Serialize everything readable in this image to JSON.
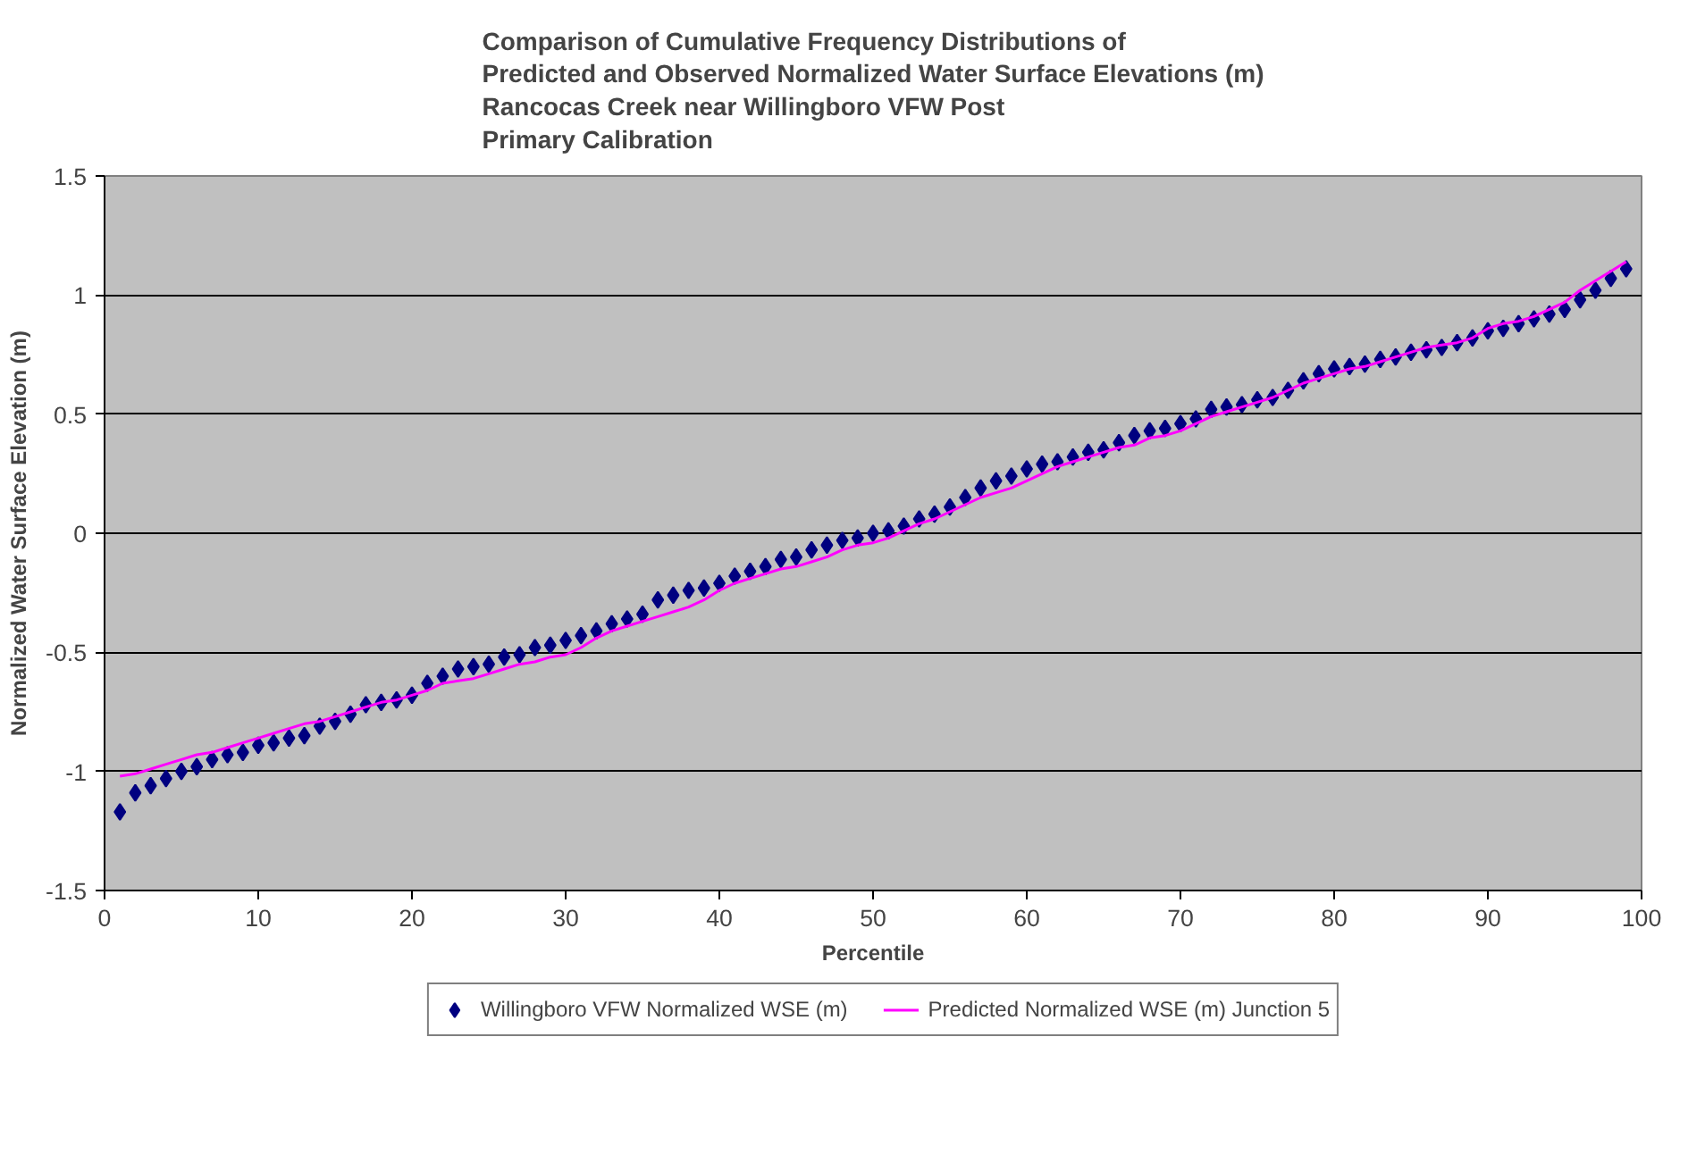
{
  "chart_data": {
    "type": "line",
    "title": "Comparison of Cumulative Frequency Distributions of\nPredicted and Observed Normalized Water Surface Elevations (m)\nRancocas Creek near Willingboro VFW Post\nPrimary Calibration",
    "xlabel": "Percentile",
    "ylabel": "Normalized Water Surface Elevation (m)",
    "x": [
      1,
      2,
      3,
      4,
      5,
      6,
      7,
      8,
      9,
      10,
      11,
      12,
      13,
      14,
      15,
      16,
      17,
      18,
      19,
      20,
      21,
      22,
      23,
      24,
      25,
      26,
      27,
      28,
      29,
      30,
      31,
      32,
      33,
      34,
      35,
      36,
      37,
      38,
      39,
      40,
      41,
      42,
      43,
      44,
      45,
      46,
      47,
      48,
      49,
      50,
      51,
      52,
      53,
      54,
      55,
      56,
      57,
      58,
      59,
      60,
      61,
      62,
      63,
      64,
      65,
      66,
      67,
      68,
      69,
      70,
      71,
      72,
      73,
      74,
      75,
      76,
      77,
      78,
      79,
      80,
      81,
      82,
      83,
      84,
      85,
      86,
      87,
      88,
      89,
      90,
      91,
      92,
      93,
      94,
      95,
      96,
      97,
      98,
      99
    ],
    "series": [
      {
        "name": "Willingboro VFW Normalized WSE (m)",
        "type": "scatter",
        "marker": "diamond",
        "color": "#000080",
        "values": [
          -1.17,
          -1.09,
          -1.06,
          -1.03,
          -1.0,
          -0.98,
          -0.95,
          -0.93,
          -0.92,
          -0.89,
          -0.88,
          -0.86,
          -0.85,
          -0.81,
          -0.79,
          -0.76,
          -0.72,
          -0.71,
          -0.7,
          -0.68,
          -0.63,
          -0.6,
          -0.57,
          -0.56,
          -0.55,
          -0.52,
          -0.51,
          -0.48,
          -0.47,
          -0.45,
          -0.43,
          -0.41,
          -0.38,
          -0.36,
          -0.34,
          -0.28,
          -0.26,
          -0.24,
          -0.23,
          -0.21,
          -0.18,
          -0.16,
          -0.14,
          -0.11,
          -0.1,
          -0.07,
          -0.05,
          -0.03,
          -0.02,
          0.0,
          0.01,
          0.03,
          0.06,
          0.08,
          0.11,
          0.15,
          0.19,
          0.22,
          0.24,
          0.27,
          0.29,
          0.3,
          0.32,
          0.34,
          0.35,
          0.38,
          0.41,
          0.43,
          0.44,
          0.46,
          0.48,
          0.52,
          0.53,
          0.54,
          0.56,
          0.57,
          0.6,
          0.64,
          0.67,
          0.69,
          0.7,
          0.71,
          0.73,
          0.74,
          0.76,
          0.77,
          0.78,
          0.8,
          0.82,
          0.85,
          0.86,
          0.88,
          0.9,
          0.92,
          0.94,
          0.98,
          1.02,
          1.07,
          1.11
        ]
      },
      {
        "name": "Predicted Normalized WSE (m) Junction 5",
        "marker": "none",
        "line_style": "solid",
        "color": "#ff00ff",
        "values": [
          -1.02,
          -1.01,
          -0.99,
          -0.97,
          -0.95,
          -0.93,
          -0.92,
          -0.9,
          -0.88,
          -0.86,
          -0.84,
          -0.82,
          -0.8,
          -0.79,
          -0.77,
          -0.75,
          -0.73,
          -0.71,
          -0.7,
          -0.68,
          -0.66,
          -0.63,
          -0.62,
          -0.61,
          -0.59,
          -0.57,
          -0.55,
          -0.54,
          -0.52,
          -0.51,
          -0.48,
          -0.44,
          -0.41,
          -0.39,
          -0.37,
          -0.35,
          -0.33,
          -0.31,
          -0.28,
          -0.24,
          -0.21,
          -0.19,
          -0.17,
          -0.15,
          -0.14,
          -0.12,
          -0.1,
          -0.07,
          -0.05,
          -0.04,
          -0.02,
          0.01,
          0.04,
          0.06,
          0.09,
          0.12,
          0.15,
          0.17,
          0.19,
          0.22,
          0.25,
          0.28,
          0.3,
          0.32,
          0.34,
          0.36,
          0.37,
          0.4,
          0.41,
          0.43,
          0.46,
          0.49,
          0.51,
          0.53,
          0.55,
          0.57,
          0.6,
          0.63,
          0.65,
          0.67,
          0.69,
          0.7,
          0.72,
          0.74,
          0.76,
          0.78,
          0.79,
          0.8,
          0.82,
          0.86,
          0.88,
          0.89,
          0.91,
          0.94,
          0.97,
          1.02,
          1.06,
          1.1,
          1.14
        ]
      }
    ],
    "xlim": [
      0,
      100
    ],
    "xticks": [
      0,
      10,
      20,
      30,
      40,
      50,
      60,
      70,
      80,
      90,
      100
    ],
    "ylim": [
      -1.5,
      1.5
    ],
    "yticks": [
      -1.5,
      -1,
      -0.5,
      0,
      0.5,
      1,
      1.5
    ],
    "grid": "y",
    "legend": "bottom"
  }
}
